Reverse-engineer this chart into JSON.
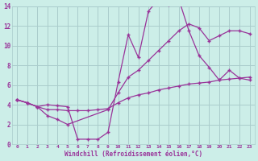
{
  "xlabel": "Windchill (Refroidissement éolien,°C)",
  "bg_color": "#cceee8",
  "grid_color": "#aacccc",
  "line_color": "#993399",
  "xlim": [
    -0.5,
    23.5
  ],
  "ylim": [
    0,
    14
  ],
  "xticks": [
    0,
    1,
    2,
    3,
    4,
    5,
    6,
    7,
    8,
    9,
    10,
    11,
    12,
    13,
    14,
    15,
    16,
    17,
    18,
    19,
    20,
    21,
    22,
    23
  ],
  "yticks": [
    0,
    2,
    4,
    6,
    8,
    10,
    12,
    14
  ],
  "line1_x": [
    0,
    1,
    2,
    3,
    4,
    5,
    6,
    7,
    8,
    9,
    10,
    11,
    12,
    13,
    14,
    15,
    16,
    17,
    18,
    19,
    20,
    21,
    22,
    23
  ],
  "line1_y": [
    4.5,
    4.2,
    3.8,
    4.0,
    3.9,
    3.8,
    0.5,
    0.5,
    0.5,
    1.2,
    6.3,
    11.1,
    8.8,
    13.5,
    14.7,
    14.1,
    14.7,
    11.5,
    9.0,
    7.8,
    6.5,
    7.5,
    6.7,
    6.5
  ],
  "line2_x": [
    0,
    1,
    2,
    3,
    4,
    5,
    9,
    10,
    11,
    12,
    13,
    14,
    15,
    16,
    17,
    18,
    19,
    20,
    21,
    22,
    23
  ],
  "line2_y": [
    4.5,
    4.2,
    3.8,
    2.9,
    2.5,
    2.0,
    3.5,
    5.2,
    6.8,
    7.5,
    8.5,
    9.5,
    10.5,
    11.5,
    12.2,
    11.8,
    10.5,
    11.0,
    11.5,
    11.5,
    11.2
  ],
  "line3_x": [
    0,
    1,
    2,
    3,
    4,
    5,
    6,
    7,
    8,
    9,
    10,
    11,
    12,
    13,
    14,
    15,
    16,
    17,
    18,
    19,
    20,
    21,
    22,
    23
  ],
  "line3_y": [
    4.5,
    4.2,
    3.8,
    3.5,
    3.5,
    3.4,
    3.4,
    3.4,
    3.5,
    3.6,
    4.2,
    4.7,
    5.0,
    5.2,
    5.5,
    5.7,
    5.9,
    6.1,
    6.2,
    6.3,
    6.5,
    6.6,
    6.7,
    6.8
  ],
  "line4_x": [
    0,
    5,
    23
  ],
  "line4_y": [
    4.5,
    3.8,
    6.8
  ]
}
